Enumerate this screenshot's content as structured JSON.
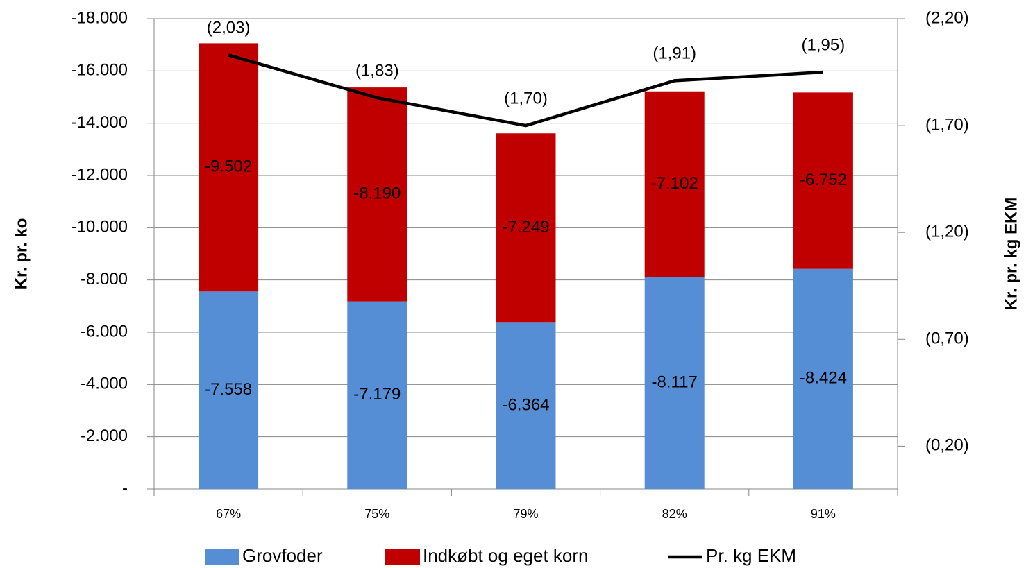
{
  "chart_data": {
    "type": "bar",
    "stacked": true,
    "categories": [
      "67%",
      "75%",
      "79%",
      "82%",
      "91%"
    ],
    "ylabel": "Kr. pr. ko",
    "y2label": "Kr. pr. kg EKM",
    "ylim": [
      0,
      -18000
    ],
    "yticks": [
      {
        "value": 0,
        "label": "-"
      },
      {
        "value": -2000,
        "label": "-2.000"
      },
      {
        "value": -4000,
        "label": "-4.000"
      },
      {
        "value": -6000,
        "label": "-6.000"
      },
      {
        "value": -8000,
        "label": "-8.000"
      },
      {
        "value": -10000,
        "label": "-10.000"
      },
      {
        "value": -12000,
        "label": "-12.000"
      },
      {
        "value": -14000,
        "label": "-14.000"
      },
      {
        "value": -16000,
        "label": "-16.000"
      },
      {
        "value": -18000,
        "label": "-18.000"
      }
    ],
    "y2lim": [
      0,
      -2.2
    ],
    "y2ticks": [
      {
        "value": -0.2,
        "label": "(0,20)"
      },
      {
        "value": -0.7,
        "label": "(0,70)"
      },
      {
        "value": -1.2,
        "label": "(1,20)"
      },
      {
        "value": -1.7,
        "label": "(1,70)"
      },
      {
        "value": -2.2,
        "label": "(2,20)"
      }
    ],
    "grid": true,
    "legend": "bottom",
    "series": [
      {
        "name": "Grovfoder",
        "type": "bar",
        "color": "#558ed5",
        "values": [
          -7558,
          -7179,
          -6364,
          -8117,
          -8424
        ],
        "value_labels": [
          "-7.558",
          "-7.179",
          "-6.364",
          "-8.117",
          "-8.424"
        ]
      },
      {
        "name": "Indkøbt og eget korn",
        "type": "bar",
        "color": "#c00000",
        "values": [
          -9502,
          -8190,
          -7249,
          -7102,
          -6752
        ],
        "value_labels": [
          "-9.502",
          "-8.190",
          "-7.249",
          "-7.102",
          "-6.752"
        ]
      },
      {
        "name": "Pr. kg EKM",
        "type": "line",
        "axis": "y2",
        "color": "#000000",
        "values": [
          -2.03,
          -1.83,
          -1.7,
          -1.91,
          -1.95
        ],
        "value_labels": [
          "(2,03)",
          "(1,83)",
          "(1,70)",
          "(1,91)",
          "(1,95)"
        ]
      }
    ]
  }
}
